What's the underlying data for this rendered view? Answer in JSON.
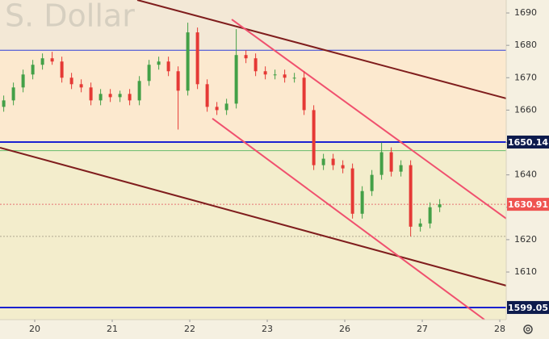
{
  "chart_data": {
    "type": "candlestick",
    "title": "S. Dollar",
    "x": [
      -0.4,
      -0.275,
      -0.15,
      -0.025,
      0.1,
      0.225,
      0.35,
      0.475,
      0.6,
      0.725,
      0.85,
      0.975,
      1.1,
      1.225,
      1.35,
      1.475,
      1.6,
      1.725,
      1.85,
      1.975,
      2.1,
      2.225,
      2.35,
      2.475,
      2.6,
      2.725,
      2.85,
      2.975,
      3.1,
      3.225,
      3.35,
      3.475,
      3.6,
      3.725,
      3.85,
      3.975,
      4.1,
      4.225,
      4.35,
      4.475,
      4.6,
      4.725,
      4.85,
      4.975,
      5.1,
      5.225
    ],
    "open": [
      1661,
      1663,
      1667,
      1671,
      1674,
      1676,
      1675,
      1670,
      1668,
      1667,
      1663,
      1665,
      1664,
      1665,
      1663,
      1669,
      1674,
      1675,
      1672,
      1666,
      1684,
      1668,
      1661,
      1660,
      1662,
      1677,
      1676,
      1672,
      1671,
      1671,
      1670,
      1670,
      1660,
      1643,
      1645,
      1643,
      1642,
      1628,
      1635,
      1640,
      1647,
      1641,
      1643,
      1624,
      1625,
      1630
    ],
    "high": [
      1664.5,
      1668.5,
      1672.5,
      1675.5,
      1677.5,
      1678,
      1676.5,
      1671.5,
      1669.5,
      1668.5,
      1666.5,
      1666.5,
      1666,
      1666.5,
      1670.5,
      1675.5,
      1676.5,
      1676.5,
      1673.5,
      1687,
      1685.5,
      1669.5,
      1662.5,
      1663.5,
      1685,
      1678.5,
      1677.5,
      1673.5,
      1672.5,
      1672.5,
      1671.5,
      1672,
      1661.5,
      1646.5,
      1646.5,
      1644.5,
      1643.5,
      1636.5,
      1641.5,
      1650,
      1648.5,
      1644.5,
      1644.5,
      1626.5,
      1631.5,
      1632.5
    ],
    "low": [
      1659.5,
      1661.5,
      1665.5,
      1669.5,
      1672.5,
      1674,
      1668.5,
      1666.5,
      1665.5,
      1661.5,
      1661.5,
      1662.5,
      1662.5,
      1661.5,
      1661.5,
      1667.5,
      1672.5,
      1670.5,
      1654,
      1664.5,
      1666.5,
      1659.5,
      1658.5,
      1658.5,
      1660.5,
      1674.5,
      1670.5,
      1669.5,
      1669.5,
      1668.5,
      1668.5,
      1658.5,
      1641.5,
      1641.5,
      1641.5,
      1640.5,
      1626.5,
      1626.5,
      1633.5,
      1638.5,
      1639.5,
      1639.5,
      1621,
      1622.5,
      1623.5,
      1628.5
    ],
    "close": [
      1663,
      1667,
      1671,
      1674,
      1676,
      1675,
      1670,
      1668,
      1667,
      1663,
      1665,
      1664,
      1665,
      1663,
      1669,
      1674,
      1675,
      1672,
      1666,
      1684,
      1668,
      1661,
      1660,
      1662,
      1677,
      1676,
      1672,
      1671,
      1671,
      1670,
      1670,
      1660,
      1643,
      1645,
      1643,
      1642,
      1628,
      1635,
      1640,
      1647,
      1641,
      1643,
      1624,
      1625,
      1630,
      1630.91
    ],
    "up_color": "#43a047",
    "down_color": "#e53935",
    "xlim": [
      -0.448,
      6.083
    ],
    "ylim": [
      1595.3,
      1694.0
    ],
    "xticks": [
      {
        "value": 0,
        "label": "20"
      },
      {
        "value": 1,
        "label": "21"
      },
      {
        "value": 2,
        "label": "22"
      },
      {
        "value": 3,
        "label": "23"
      },
      {
        "value": 4,
        "label": "26"
      },
      {
        "value": 5,
        "label": "27"
      },
      {
        "value": 6,
        "label": "28"
      }
    ],
    "yticks": [
      1610,
      1620,
      1630,
      1640,
      1650,
      1660,
      1670,
      1680,
      1690
    ],
    "band_colors": [
      "#f3e8d6",
      "#fce9cf",
      "#f3edcc"
    ],
    "levels": [
      {
        "value": 1678.5,
        "color": "#2f3fd8",
        "width": 1
      },
      {
        "value": 1650.14,
        "color": "#1a22d0",
        "width": 2,
        "labeled": true,
        "label_color": "#0d1b4d"
      },
      {
        "value": 1647.5,
        "color": "#66bb6a",
        "width": 1
      },
      {
        "value": 1630.91,
        "color": "#e57373",
        "width": 1,
        "dashed": true,
        "labeled": true,
        "label_color": "#ef5350"
      },
      {
        "value": 1621,
        "color": "#b0a890",
        "width": 1,
        "dashed": true
      },
      {
        "value": 1599.05,
        "color": "#1a22d0",
        "width": 2,
        "labeled": true,
        "label_color": "#0d1b4d"
      }
    ],
    "trend_lines": [
      {
        "x": [
          1.323,
          6.083
        ],
        "y": [
          1694.0,
          1663.6
        ],
        "color": "#7f1d1d",
        "width": 2
      },
      {
        "x": [
          -0.448,
          6.083
        ],
        "y": [
          1648.4,
          1605.8
        ],
        "color": "#7f1d1d",
        "width": 2
      },
      {
        "x": [
          2.542,
          6.083
        ],
        "y": [
          1688.0,
          1626.5
        ],
        "color": "#f0506e",
        "width": 2
      },
      {
        "x": [
          2.292,
          5.802
        ],
        "y": [
          1657.4,
          1595.3
        ],
        "color": "#f0506e",
        "width": 2
      }
    ]
  }
}
